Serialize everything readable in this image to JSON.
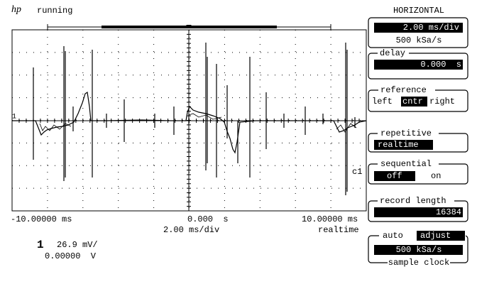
{
  "header": {
    "logo": "hp",
    "status": "running"
  },
  "panel": {
    "title": "HORIZONTAL",
    "timebase": {
      "value": "2.00 ms/div",
      "rate": "500 kSa/s"
    },
    "delay": {
      "label": "delay",
      "value": "0.000  s"
    },
    "reference": {
      "label": "reference",
      "options": [
        "left",
        "cntr",
        "right"
      ]
    },
    "repetitive": {
      "label": "repetitive",
      "value": "realtime"
    },
    "sequential": {
      "label": "sequential",
      "options": [
        "off",
        "on"
      ]
    },
    "record_length": {
      "label": "record length",
      "value": "16384"
    },
    "sample_clock": {
      "options": [
        "auto",
        "adjust"
      ],
      "value": "500 kSa/s",
      "label": "sample clock"
    }
  },
  "screen": {
    "channel_marker": "1",
    "trace_label": "c1"
  },
  "axis": {
    "left": "-10.00000 ms",
    "center": "0.000  s",
    "right": "10.00000 ms",
    "scale": "2.00 ms/div",
    "mode": "realtime"
  },
  "channel": {
    "number": "1",
    "scale": "26.9 mV/",
    "offset": "0.00000  V"
  }
}
